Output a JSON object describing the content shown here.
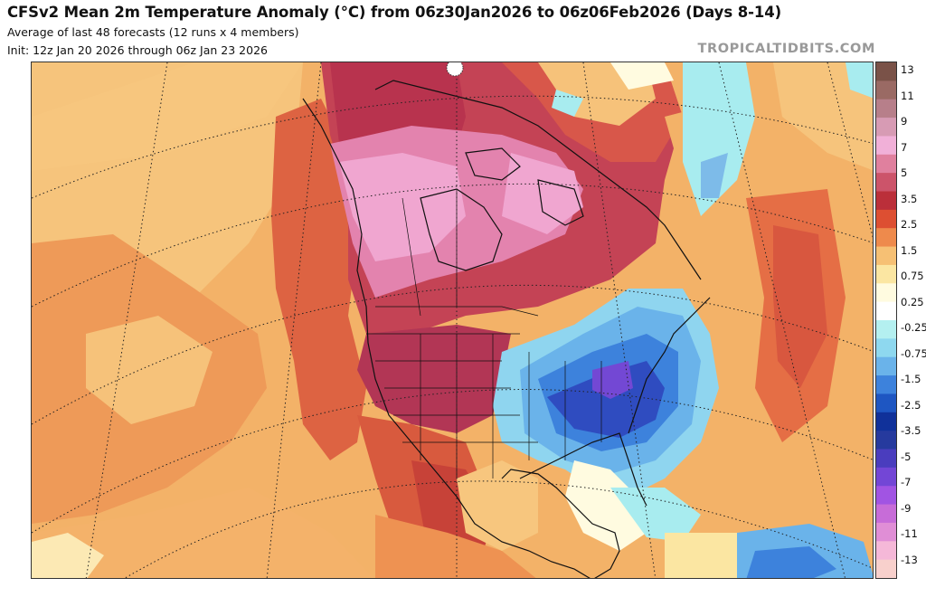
{
  "header": {
    "title": "CFSv2 Mean 2m Temperature Anomaly (°C) from 06z30Jan2026 to 06z06Feb2026 (Days 8-14)",
    "subtitle_line1": "Average of last 48 forecasts (12 runs x 4 members)",
    "subtitle_line2": "Init: 12z Jan 20 2026 through 06z Jan 23 2026",
    "brand": "TROPICALTIDBITS.COM"
  },
  "colorbar": {
    "labels": [
      "13",
      "11",
      "9",
      "7",
      "5",
      "3.5",
      "2.5",
      "1.5",
      "0.75",
      "0.25",
      "-0.25",
      "-0.75",
      "-1.5",
      "-2.5",
      "-3.5",
      "-5",
      "-7",
      "-9",
      "-11",
      "-13"
    ],
    "colors": [
      "#7a5248",
      "#9a6a64",
      "#b77f8a",
      "#d79bb4",
      "#f1b0d8",
      "#e0809e",
      "#cc546a",
      "#bb2f3a",
      "#dd4f32",
      "#ee8a4c",
      "#f6c074",
      "#fbe6a2",
      "#fffbe0",
      "#ffffff",
      "#b4f0f0",
      "#8ed8ef",
      "#6ab3ea",
      "#3d82dc",
      "#1e56c2",
      "#10319a",
      "#263a9e",
      "#4a3dbe",
      "#7346d6",
      "#a154e3",
      "#c76cd8",
      "#e08ed6",
      "#f5b8d8",
      "#f8d0cc"
    ]
  },
  "map": {
    "colors": {
      "ocean_light": "#f7c274",
      "ocean_mid": "#ef9d57",
      "land_warm": "#e8754c",
      "red": "#c9443f",
      "pink": "#e486ad",
      "pink_light": "#f1a4cf",
      "maroon": "#b03652",
      "blue_light": "#7dbbe9",
      "blue": "#3f78dc",
      "blue_dark": "#2f4cc0",
      "purple": "#7348d4",
      "cyan": "#a8ecef"
    }
  }
}
